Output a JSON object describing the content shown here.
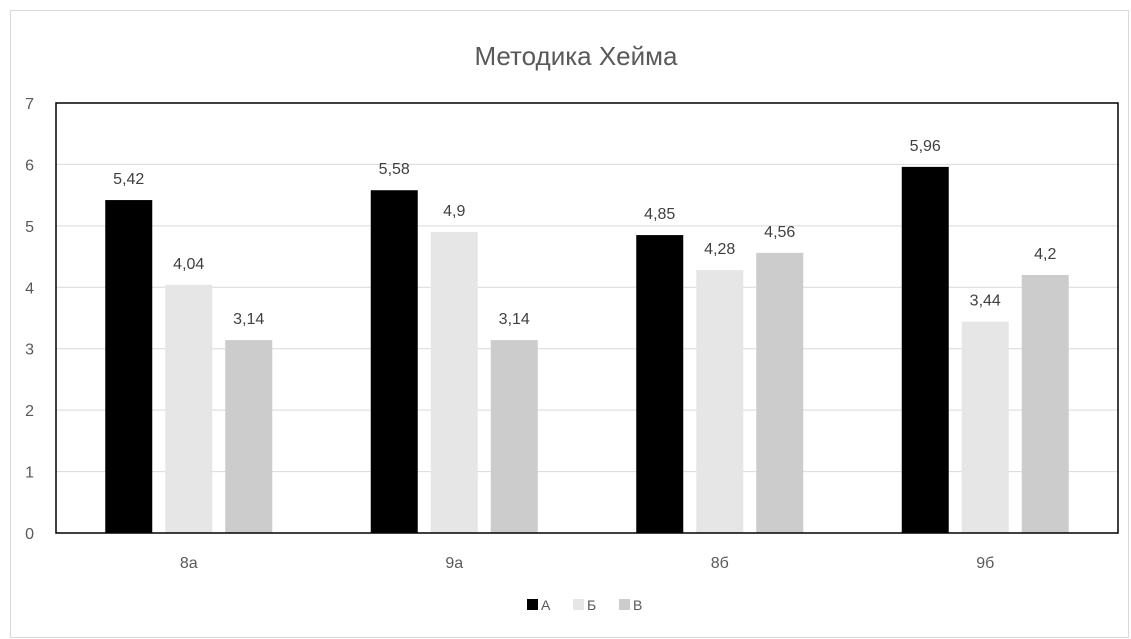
{
  "chart_data": {
    "type": "bar",
    "title": "Методика Хейма",
    "xlabel": "",
    "ylabel": "",
    "categories": [
      "8а",
      "9а",
      "8б",
      "9б"
    ],
    "series": [
      {
        "name": "А",
        "values": [
          5.42,
          5.58,
          4.85,
          5.96
        ],
        "labels": [
          "5,42",
          "5,58",
          "4,85",
          "5,96"
        ],
        "color": "#000000"
      },
      {
        "name": "Б",
        "values": [
          4.04,
          4.9,
          4.28,
          3.44
        ],
        "labels": [
          "4,04",
          "4,9",
          "4,28",
          "3,44"
        ],
        "color": "#e6e6e6"
      },
      {
        "name": "В",
        "values": [
          3.14,
          3.14,
          4.56,
          4.2
        ],
        "labels": [
          "3,14",
          "3,14",
          "4,56",
          "4,2"
        ],
        "color": "#cccccc"
      }
    ],
    "yticks": [
      "0",
      "1",
      "2",
      "3",
      "4",
      "5",
      "6",
      "7"
    ],
    "ylim": [
      0,
      7
    ],
    "grid": true,
    "legend_position": "bottom"
  }
}
